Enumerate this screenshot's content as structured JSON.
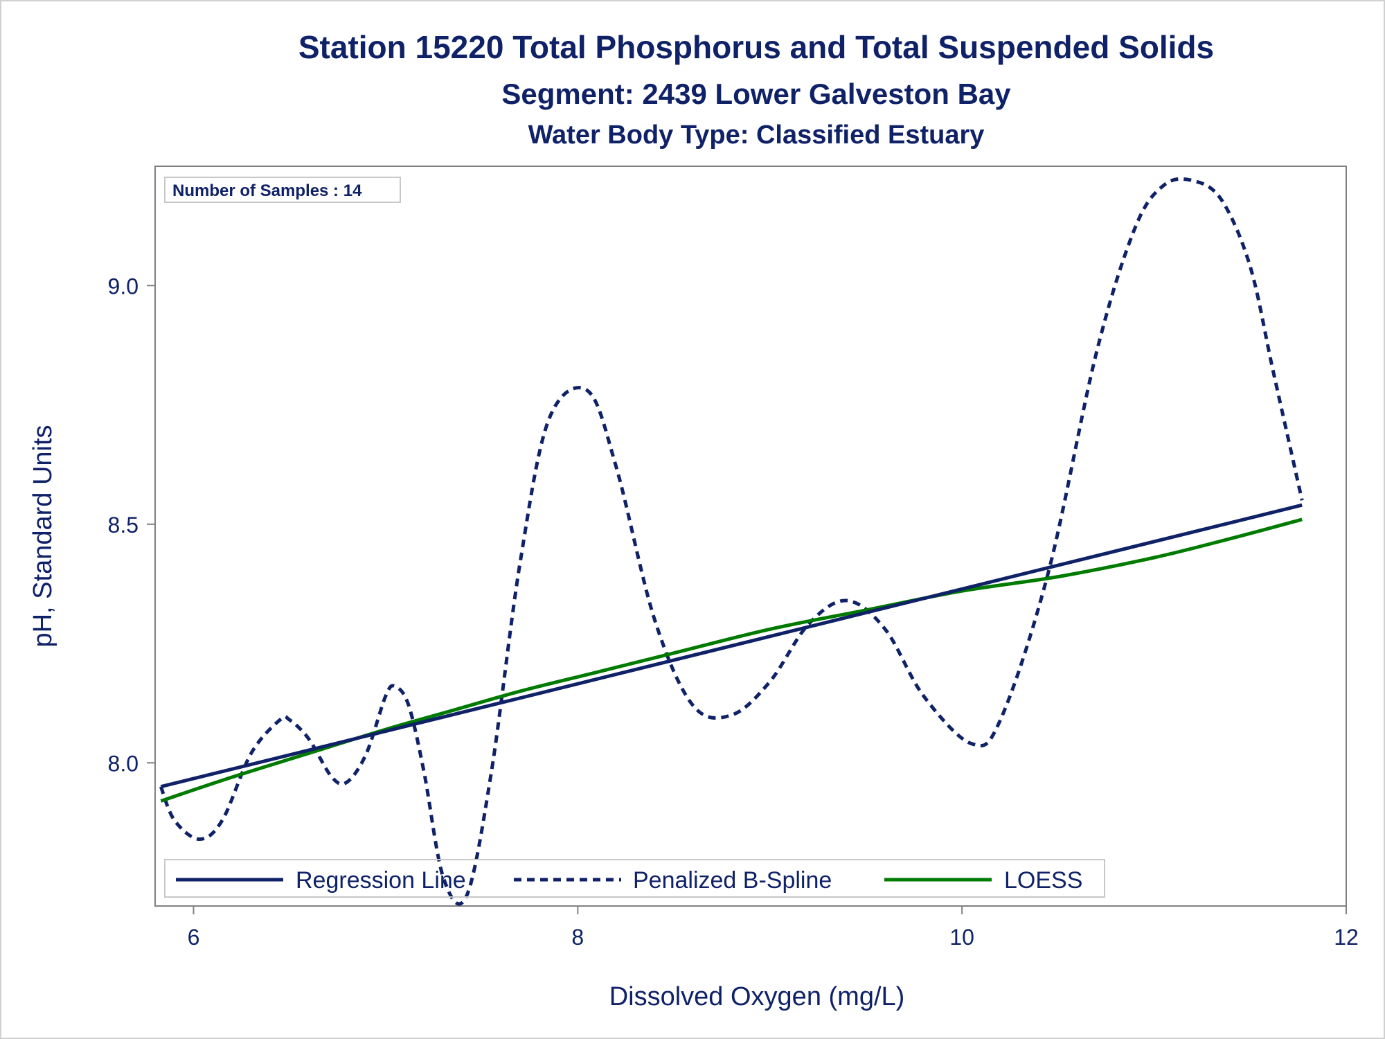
{
  "chart_data": {
    "type": "line",
    "title": "Station 15220  Total Phosphorus and Total Suspended Solids",
    "subtitle": "Segment: 2439  Lower Galveston Bay",
    "subtitle2": "Water Body Type: Classified Estuary",
    "xlabel": "Dissolved Oxygen (mg/L)",
    "ylabel": "pH, Standard Units",
    "xlim": [
      5.8,
      12.0
    ],
    "ylim": [
      7.7,
      9.25
    ],
    "xticks": [
      6,
      8,
      10,
      12
    ],
    "xtick_labels": [
      "6",
      "8",
      "10",
      "12"
    ],
    "yticks": [
      8.0,
      8.5,
      9.0
    ],
    "ytick_labels": [
      "8.0",
      "8.5",
      "9.0"
    ],
    "annotation": "Number of Samples : 14",
    "legend_position": "bottom-left inside",
    "grid": false,
    "colors": {
      "regression": "#0f2167",
      "spline": "#0f2167",
      "loess": "#007b00",
      "text": "#0f2167",
      "axis": "#808080"
    },
    "series": [
      {
        "name": "Regression Line",
        "style": "solid",
        "x": [
          5.83,
          11.77
        ],
        "y": [
          7.95,
          8.54
        ]
      },
      {
        "name": "Penalized B-Spline",
        "style": "dashed",
        "x": [
          5.83,
          5.9,
          6.03,
          6.15,
          6.3,
          6.45,
          6.5,
          6.6,
          6.72,
          6.8,
          6.9,
          7.0,
          7.05,
          7.12,
          7.2,
          7.3,
          7.42,
          7.55,
          7.7,
          7.85,
          8.05,
          8.2,
          8.4,
          8.6,
          8.8,
          9.0,
          9.2,
          9.4,
          9.6,
          9.8,
          10.05,
          10.2,
          10.45,
          10.7,
          10.9,
          11.05,
          11.2,
          11.35,
          11.5,
          11.62,
          11.77
        ],
        "y": [
          7.95,
          7.88,
          7.84,
          7.88,
          8.02,
          8.09,
          8.09,
          8.05,
          7.97,
          7.96,
          8.02,
          8.14,
          8.16,
          8.12,
          7.98,
          7.76,
          7.72,
          7.98,
          8.42,
          8.72,
          8.78,
          8.62,
          8.3,
          8.12,
          8.1,
          8.17,
          8.29,
          8.34,
          8.28,
          8.14,
          8.04,
          8.09,
          8.4,
          8.86,
          9.12,
          9.21,
          9.22,
          9.18,
          9.04,
          8.82,
          8.55
        ]
      },
      {
        "name": "LOESS",
        "style": "solid",
        "x": [
          5.83,
          6.2,
          6.6,
          7.0,
          7.35,
          7.7,
          8.1,
          8.5,
          9.0,
          9.5,
          10.0,
          10.5,
          11.0,
          11.4,
          11.77
        ],
        "y": [
          7.92,
          7.97,
          8.02,
          8.07,
          8.11,
          8.15,
          8.19,
          8.23,
          8.28,
          8.32,
          8.36,
          8.39,
          8.43,
          8.47,
          8.51
        ]
      }
    ]
  }
}
